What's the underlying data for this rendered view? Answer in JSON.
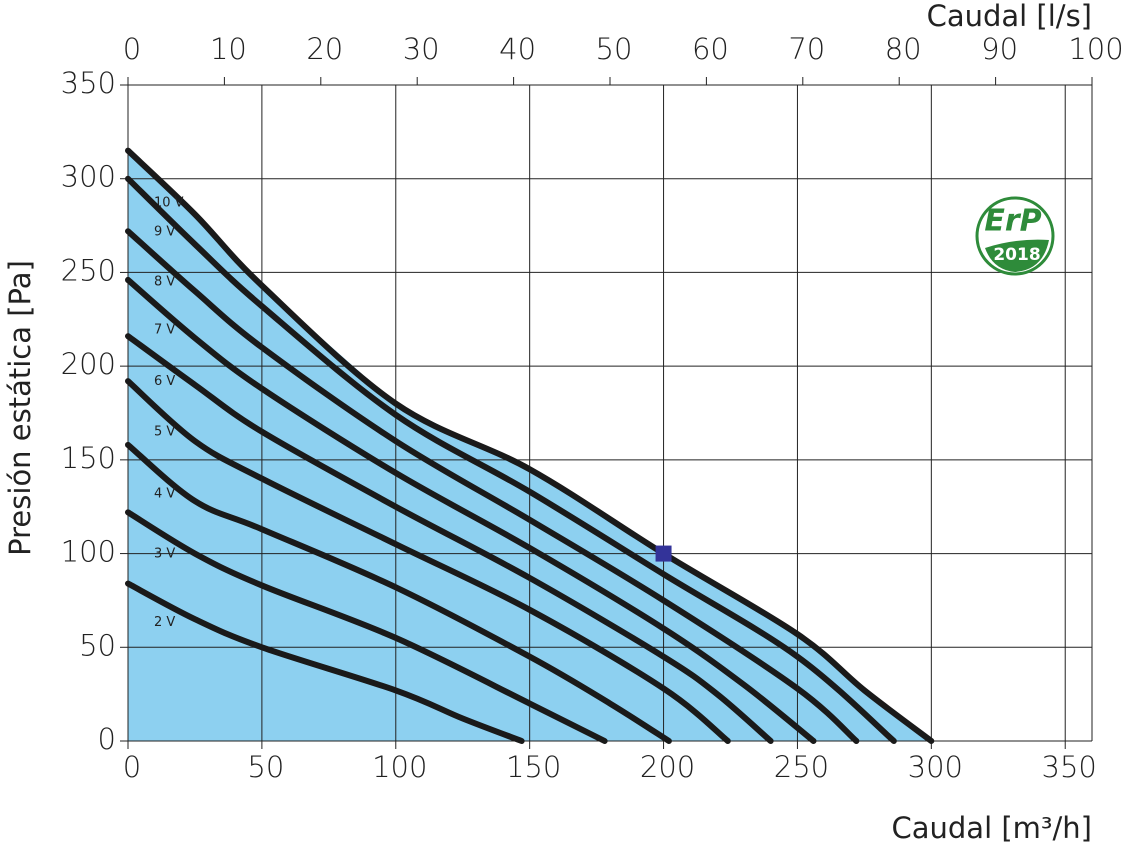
{
  "chart_data": {
    "type": "line",
    "x_title": "Caudal [m³/h]",
    "x2_title": "Caudal [l/s]",
    "y_title": "Presión estática [Pa]",
    "xlim": [
      0,
      360
    ],
    "xticks": [
      0,
      50,
      100,
      150,
      200,
      250,
      300,
      350
    ],
    "x2lim": [
      0,
      100
    ],
    "x2ticks": [
      0,
      10,
      20,
      30,
      40,
      50,
      60,
      70,
      80,
      90,
      100
    ],
    "ylim": [
      0,
      350
    ],
    "yticks": [
      0,
      50,
      100,
      150,
      200,
      250,
      300,
      350
    ],
    "grid": true,
    "line_color": "#1a1a1a",
    "fill_color": "#8dd0f0",
    "series": [
      {
        "name": "10 V",
        "x": [
          0,
          25,
          50,
          100,
          150,
          200,
          250,
          275,
          300
        ],
        "values": [
          315,
          281,
          243,
          180,
          145,
          100,
          57,
          27,
          0
        ]
      },
      {
        "name": "9 V",
        "x": [
          0,
          25,
          50,
          100,
          150,
          200,
          250,
          286
        ],
        "values": [
          300,
          265,
          232,
          174,
          133,
          89,
          45,
          0
        ]
      },
      {
        "name": "8 V",
        "x": [
          0,
          25,
          50,
          100,
          150,
          200,
          250,
          272
        ],
        "values": [
          272,
          240,
          210,
          160,
          118,
          75,
          28,
          0
        ]
      },
      {
        "name": "7 V",
        "x": [
          0,
          25,
          50,
          100,
          150,
          200,
          230,
          256
        ],
        "values": [
          246,
          215,
          188,
          143,
          103,
          60,
          30,
          0
        ]
      },
      {
        "name": "6 V",
        "x": [
          0,
          25,
          50,
          100,
          150,
          200,
          220,
          240
        ],
        "values": [
          216,
          190,
          165,
          125,
          87,
          45,
          25,
          0
        ]
      },
      {
        "name": "5 V",
        "x": [
          0,
          25,
          50,
          100,
          150,
          200,
          224
        ],
        "values": [
          192,
          160,
          140,
          105,
          70,
          28,
          0
        ]
      },
      {
        "name": "4 V",
        "x": [
          0,
          25,
          50,
          100,
          150,
          180,
          202
        ],
        "values": [
          158,
          128,
          113,
          82,
          45,
          20,
          0
        ]
      },
      {
        "name": "3 V",
        "x": [
          0,
          25,
          50,
          100,
          150,
          178
        ],
        "values": [
          122,
          100,
          83,
          55,
          20,
          0
        ]
      },
      {
        "name": "2 V",
        "x": [
          0,
          25,
          50,
          100,
          125,
          147
        ],
        "values": [
          84,
          65,
          50,
          27,
          12,
          0
        ]
      }
    ],
    "marker": {
      "x": 200,
      "y": 100,
      "color": "#333399"
    },
    "logo": {
      "text": "ErP",
      "year": "2018",
      "color": "#2e8b3a"
    }
  }
}
